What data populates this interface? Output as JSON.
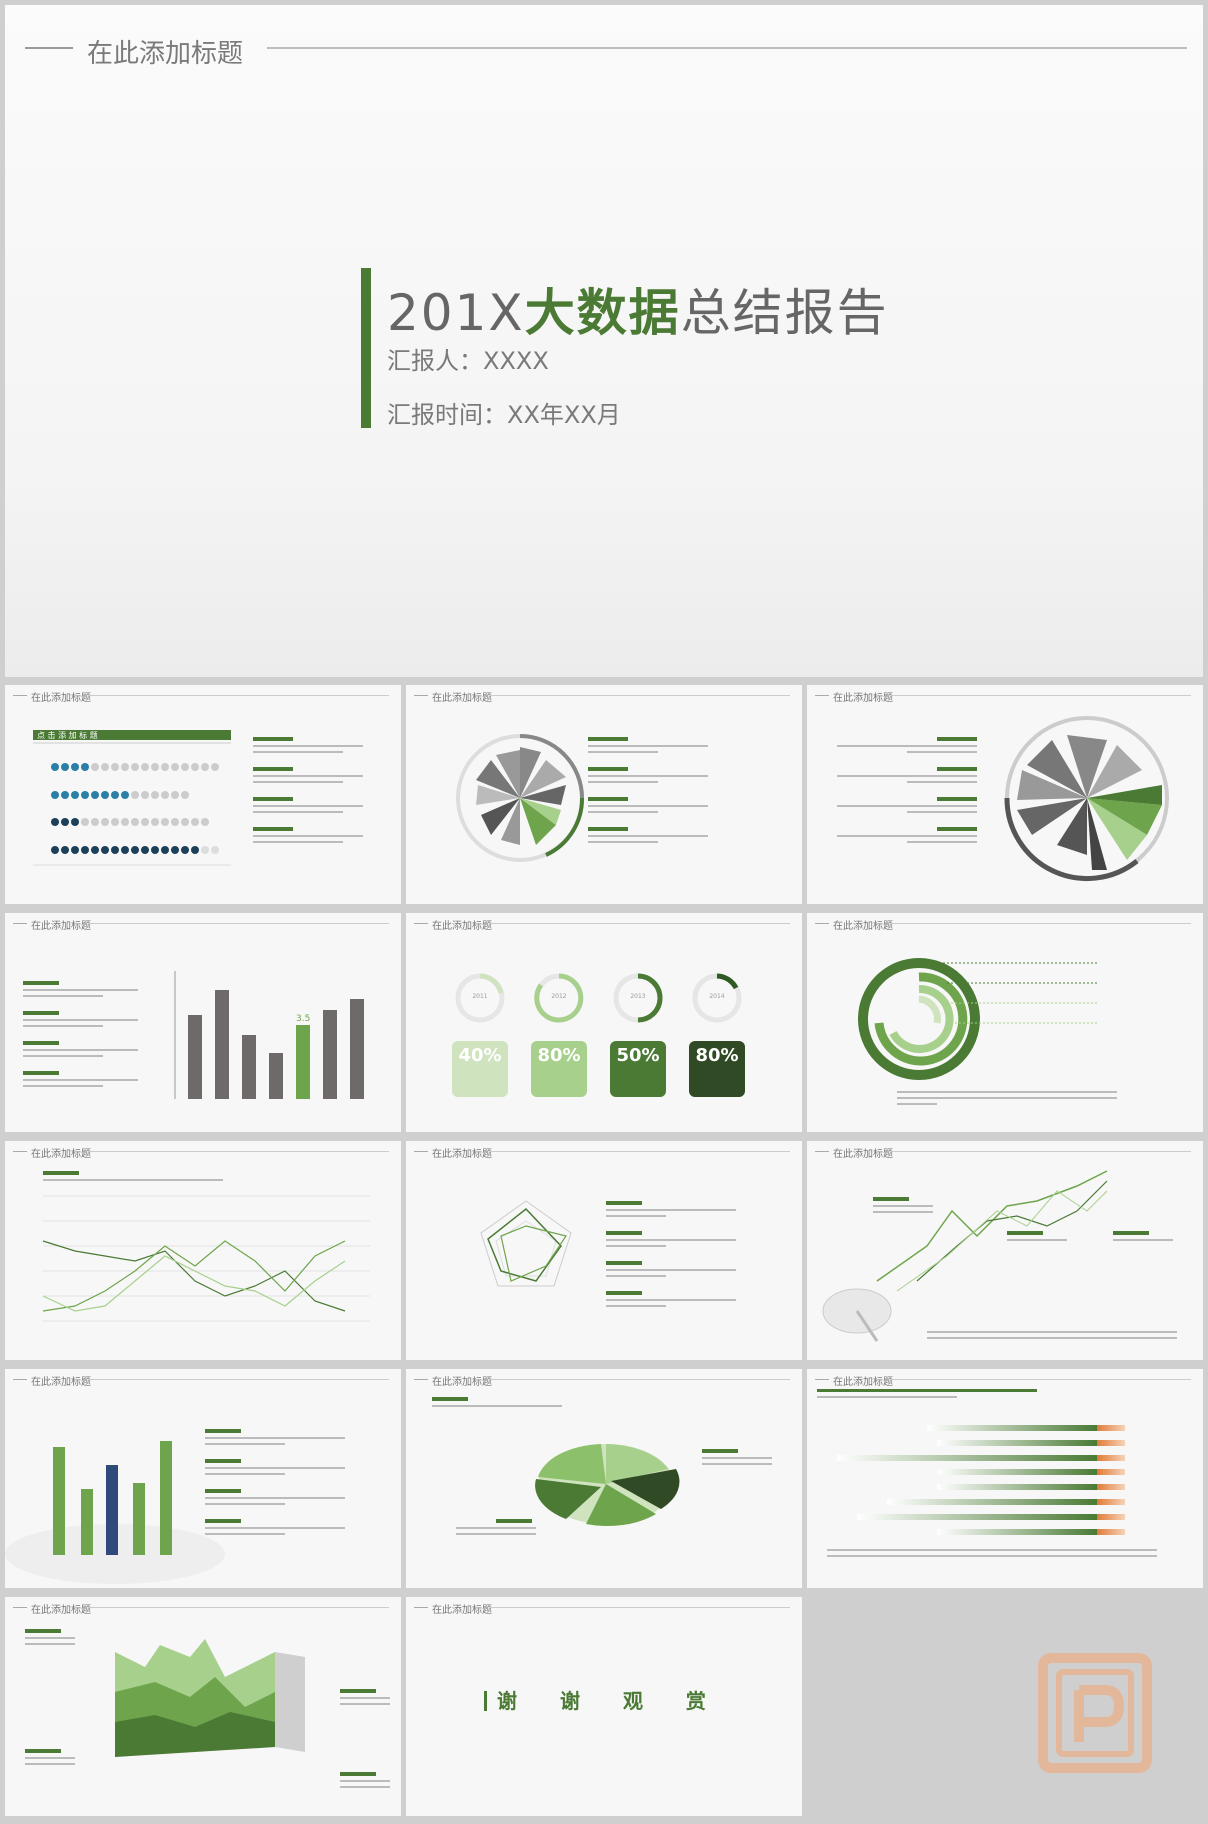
{
  "cover": {
    "header": "在此添加标题",
    "title_year": "201X",
    "title_bold": "大数据",
    "title_rest": "总结报告",
    "reporter": "汇报人：XXXX",
    "report_time": "汇报时间：XX年XX月"
  },
  "slide_header": "在此添加标题",
  "thumb_subtitle": "在此添加标题",
  "bar_title": "点 击 添 加 标 题",
  "bar_highlight": "3.5",
  "donut_percents": [
    {
      "year": "2011",
      "value": "40%"
    },
    {
      "year": "2012",
      "value": "80%"
    },
    {
      "year": "2013",
      "value": "50%"
    },
    {
      "year": "2014",
      "value": "80%"
    }
  ],
  "thanks": "谢 谢 观 赏",
  "colors": {
    "accent": "#4a7a34",
    "light_green": "#a8d08d",
    "gray": "#6f6f6f",
    "orange": "#e07b39"
  }
}
